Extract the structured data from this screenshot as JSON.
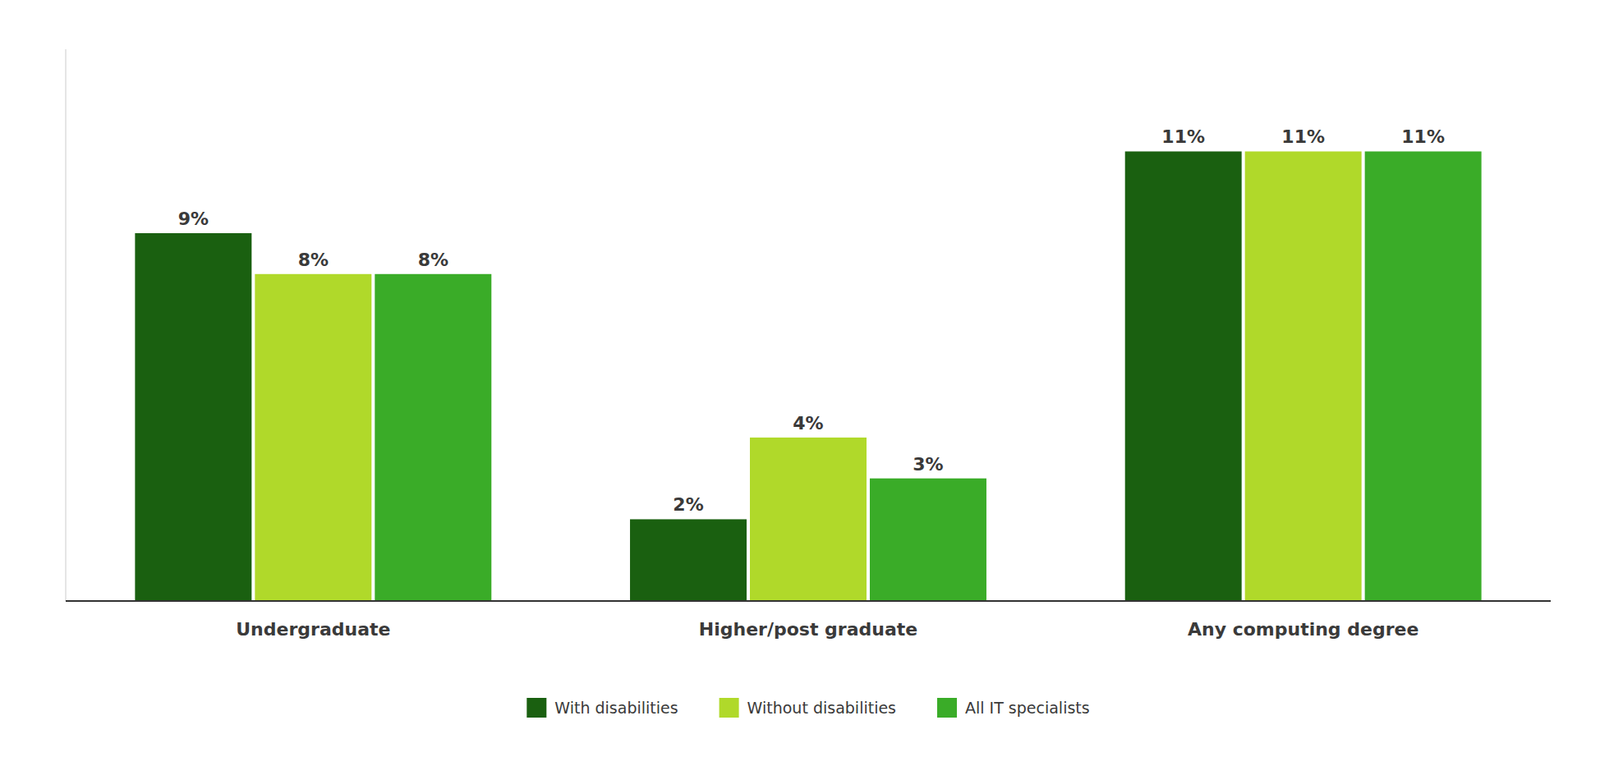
{
  "chart_data": {
    "type": "bar",
    "categories": [
      "Undergraduate",
      "Higher/post graduate",
      "Any computing degree"
    ],
    "series": [
      {
        "name": "With disabilities",
        "color": "#1a6010",
        "values": [
          9,
          2,
          11
        ],
        "value_labels": [
          "9%",
          "2%",
          "11%"
        ]
      },
      {
        "name": "Without disabilities",
        "color": "#b0d92a",
        "values": [
          8,
          4,
          11
        ],
        "value_labels": [
          "8%",
          "4%",
          "11%"
        ]
      },
      {
        "name": "All IT specialists",
        "color": "#3aac28",
        "values": [
          8,
          3,
          11
        ],
        "value_labels": [
          "8%",
          "3%",
          "11%"
        ]
      }
    ],
    "ylim": [
      0,
      13.5
    ],
    "grid": false,
    "legend": "bottom",
    "data_labels": true,
    "tick_labels": "x"
  }
}
